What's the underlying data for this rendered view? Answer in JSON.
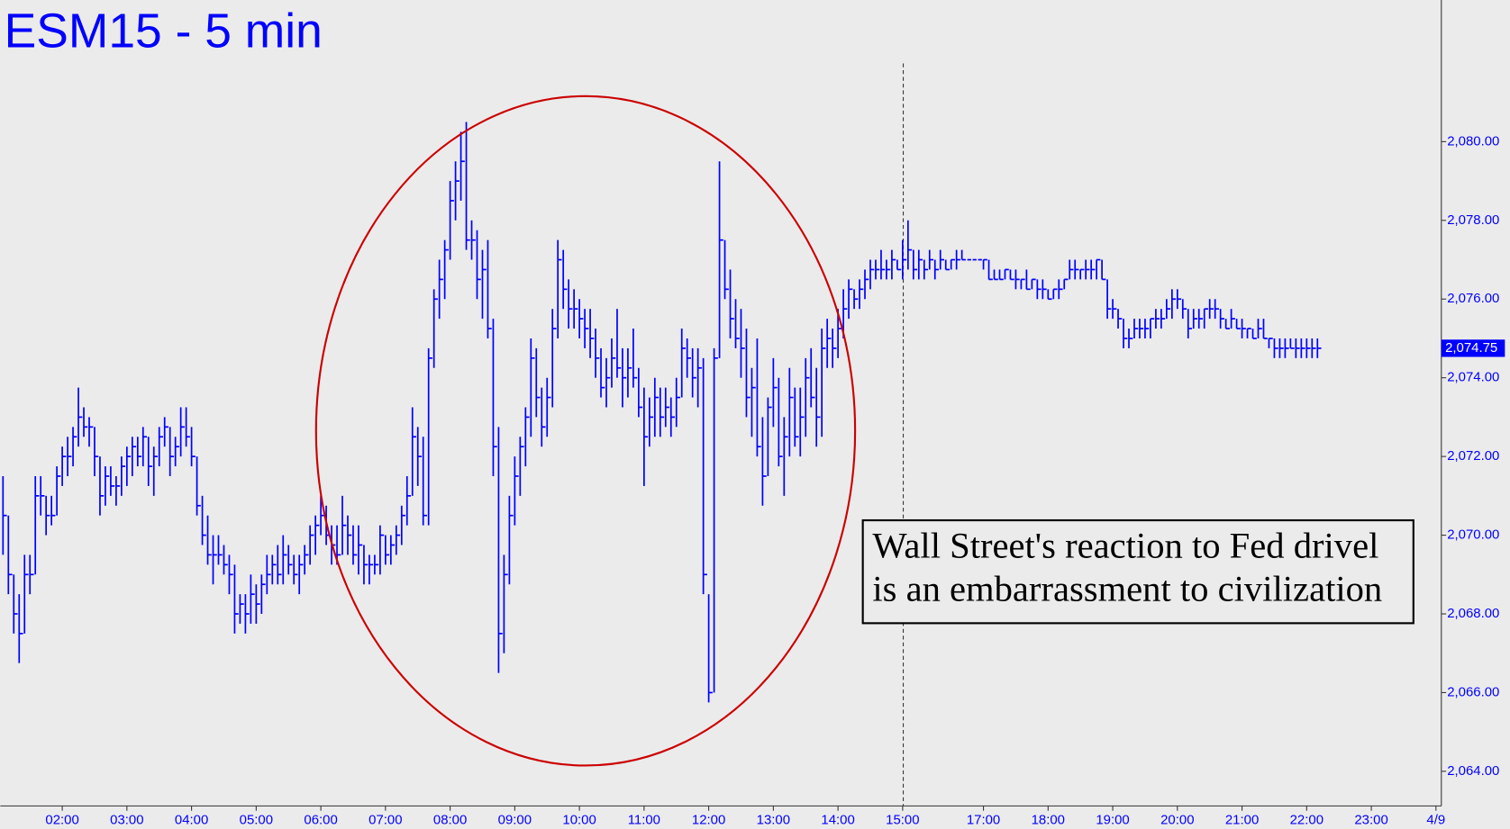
{
  "chart_data": {
    "type": "ohlc",
    "title": "ESM15 - 5 min",
    "color": "#0000ff",
    "annotation": [
      "Wall Street's reaction to Fed drivel",
      "is an embarrassment to civilization"
    ],
    "last_price": {
      "value": 2074.75,
      "label": "2,074.75"
    },
    "xlim": [
      -0.5,
      267
    ],
    "xticks": [
      {
        "value": 11,
        "label": "02:00"
      },
      {
        "value": 23,
        "label": "03:00"
      },
      {
        "value": 35,
        "label": "04:00"
      },
      {
        "value": 47,
        "label": "05:00"
      },
      {
        "value": 59,
        "label": "06:00"
      },
      {
        "value": 71,
        "label": "07:00"
      },
      {
        "value": 83,
        "label": "08:00"
      },
      {
        "value": 95,
        "label": "09:00"
      },
      {
        "value": 107,
        "label": "10:00"
      },
      {
        "value": 119,
        "label": "11:00"
      },
      {
        "value": 131,
        "label": "12:00"
      },
      {
        "value": 143,
        "label": "13:00"
      },
      {
        "value": 155,
        "label": "14:00"
      },
      {
        "value": 167,
        "label": "15:00"
      },
      {
        "value": 182,
        "label": "17:00"
      },
      {
        "value": 194,
        "label": "18:00"
      },
      {
        "value": 206,
        "label": "19:00"
      },
      {
        "value": 218,
        "label": "20:00"
      },
      {
        "value": 230,
        "label": "21:00"
      },
      {
        "value": 242,
        "label": "22:00"
      },
      {
        "value": 254,
        "label": "23:00"
      },
      {
        "value": 266,
        "label": "4/9"
      }
    ],
    "ylim": [
      2063.12,
      2083.6
    ],
    "yticks": [
      {
        "value": 2064,
        "label": "2,064.00"
      },
      {
        "value": 2066,
        "label": "2,066.00"
      },
      {
        "value": 2068,
        "label": "2,068.00"
      },
      {
        "value": 2070,
        "label": "2,070.00"
      },
      {
        "value": 2072,
        "label": "2,072.00"
      },
      {
        "value": 2074,
        "label": "2,074.00"
      },
      {
        "value": 2076,
        "label": "2,076.00"
      },
      {
        "value": 2078,
        "label": "2,078.00"
      },
      {
        "value": 2080,
        "label": "2,080.00"
      }
    ],
    "bars": [
      [
        2071.5,
        2069.5,
        2070.5
      ],
      [
        2070.5,
        2068.5,
        2069
      ],
      [
        2069,
        2067.5,
        2068
      ],
      [
        2068.5,
        2066.75,
        2067.5
      ],
      [
        2069.5,
        2067.5,
        2069
      ],
      [
        2069.5,
        2068.5,
        2069
      ],
      [
        2071.5,
        2069,
        2071
      ],
      [
        2071.5,
        2070.5,
        2071
      ],
      [
        2071,
        2070,
        2070.5
      ],
      [
        2071,
        2070.25,
        2070.5
      ],
      [
        2071.75,
        2070.5,
        2071.5
      ],
      [
        2072.25,
        2071.25,
        2072
      ],
      [
        2072.5,
        2071.5,
        2072
      ],
      [
        2072.75,
        2071.75,
        2072.5
      ],
      [
        2073.75,
        2072.25,
        2073
      ],
      [
        2073.25,
        2072.5,
        2072.75
      ],
      [
        2073,
        2072.25,
        2072.75
      ],
      [
        2072.75,
        2071.5,
        2072
      ],
      [
        2072,
        2070.5,
        2071
      ],
      [
        2071.75,
        2070.75,
        2071.5
      ],
      [
        2071.75,
        2071,
        2071.25
      ],
      [
        2071.5,
        2070.75,
        2071.25
      ],
      [
        2072,
        2071,
        2071.75
      ],
      [
        2072.25,
        2071.25,
        2072
      ],
      [
        2072.5,
        2071.5,
        2072.25
      ],
      [
        2072.5,
        2071.75,
        2072
      ],
      [
        2072.75,
        2071.75,
        2072.5
      ],
      [
        2072.5,
        2071.25,
        2071.75
      ],
      [
        2072.25,
        2071,
        2072
      ],
      [
        2072.75,
        2071.75,
        2072.5
      ],
      [
        2073,
        2072.25,
        2072.75
      ],
      [
        2072.75,
        2071.5,
        2072
      ],
      [
        2072.5,
        2071.75,
        2072.25
      ],
      [
        2073.25,
        2072,
        2072.75
      ],
      [
        2073.25,
        2072.25,
        2072.5
      ],
      [
        2072.75,
        2071.75,
        2072
      ],
      [
        2072,
        2070.5,
        2070.75
      ],
      [
        2071,
        2069.75,
        2070
      ],
      [
        2070.5,
        2069.25,
        2069.5
      ],
      [
        2070,
        2068.75,
        2069.5
      ],
      [
        2070,
        2069.25,
        2069.5
      ],
      [
        2069.75,
        2069,
        2069.25
      ],
      [
        2069.5,
        2068.5,
        2069
      ],
      [
        2069.25,
        2067.5,
        2068
      ],
      [
        2068.5,
        2067.75,
        2068.25
      ],
      [
        2068.5,
        2067.5,
        2068
      ],
      [
        2069,
        2067.75,
        2068.5
      ],
      [
        2068.75,
        2067.75,
        2068.25
      ],
      [
        2069,
        2068,
        2068.75
      ],
      [
        2069.5,
        2068.5,
        2069
      ],
      [
        2069.5,
        2068.75,
        2069.25
      ],
      [
        2069.75,
        2068.75,
        2069
      ],
      [
        2070,
        2068.75,
        2069.5
      ],
      [
        2069.75,
        2069,
        2069.25
      ],
      [
        2069.5,
        2068.75,
        2069
      ],
      [
        2069.5,
        2068.5,
        2069.25
      ],
      [
        2069.75,
        2069,
        2069.5
      ],
      [
        2070.25,
        2069.25,
        2070
      ],
      [
        2070.5,
        2069.5,
        2070.25
      ],
      [
        2071,
        2070,
        2070.5
      ],
      [
        2070.75,
        2069.75,
        2070
      ],
      [
        2070.25,
        2069.25,
        2069.75
      ],
      [
        2070.25,
        2069.25,
        2069.5
      ],
      [
        2071,
        2069.5,
        2070.25
      ],
      [
        2070.5,
        2069.5,
        2070
      ],
      [
        2070.25,
        2069.25,
        2069.5
      ],
      [
        2070.25,
        2069,
        2069.75
      ],
      [
        2069.75,
        2068.75,
        2069.25
      ],
      [
        2069.5,
        2068.75,
        2069.25
      ],
      [
        2069.5,
        2069,
        2069.25
      ],
      [
        2070.25,
        2069,
        2070
      ],
      [
        2070,
        2069.25,
        2069.5
      ],
      [
        2070,
        2069.25,
        2069.75
      ],
      [
        2070.25,
        2069.5,
        2070
      ],
      [
        2070.75,
        2069.75,
        2070.5
      ],
      [
        2071.5,
        2070.25,
        2071
      ],
      [
        2073.25,
        2071,
        2072.5
      ],
      [
        2072.75,
        2071.25,
        2072
      ],
      [
        2072.5,
        2070.25,
        2070.5
      ],
      [
        2074.75,
        2070.25,
        2074.5
      ],
      [
        2076.25,
        2074.25,
        2076
      ],
      [
        2077,
        2075.5,
        2076.5
      ],
      [
        2077.5,
        2076,
        2077.25
      ],
      [
        2079,
        2077,
        2078.5
      ],
      [
        2079.5,
        2078,
        2079
      ],
      [
        2080.25,
        2078.5,
        2079.5
      ],
      [
        2080.5,
        2077.25,
        2077.5
      ],
      [
        2078,
        2077,
        2077.5
      ],
      [
        2077.75,
        2076,
        2076.5
      ],
      [
        2077.25,
        2075.5,
        2076.75
      ],
      [
        2077.5,
        2075,
        2075.25
      ],
      [
        2075.5,
        2071.5,
        2072.25
      ],
      [
        2072.75,
        2066.5,
        2067.5
      ],
      [
        2069.5,
        2067,
        2069
      ],
      [
        2071,
        2068.75,
        2070.5
      ],
      [
        2072,
        2070.25,
        2071.5
      ],
      [
        2072.5,
        2071,
        2072.25
      ],
      [
        2073.25,
        2071.75,
        2073
      ],
      [
        2075,
        2072.5,
        2074.5
      ],
      [
        2074.75,
        2073,
        2073.5
      ],
      [
        2073.75,
        2072.25,
        2072.75
      ],
      [
        2074,
        2072.5,
        2073.5
      ],
      [
        2075.75,
        2073.25,
        2075.25
      ],
      [
        2077.5,
        2075,
        2077
      ],
      [
        2077.25,
        2075.75,
        2076.25
      ],
      [
        2076.5,
        2075.25,
        2075.75
      ],
      [
        2076.25,
        2075.25,
        2075.75
      ],
      [
        2076,
        2075,
        2075.5
      ],
      [
        2075.75,
        2074.75,
        2075.25
      ],
      [
        2075.75,
        2074.5,
        2075
      ],
      [
        2075.25,
        2074,
        2074.5
      ],
      [
        2074.75,
        2073.5,
        2073.75
      ],
      [
        2074.5,
        2073.25,
        2074
      ],
      [
        2075,
        2073.75,
        2074.5
      ],
      [
        2075.75,
        2074,
        2074.25
      ],
      [
        2074.75,
        2073.25,
        2074
      ],
      [
        2074.75,
        2073.5,
        2074.25
      ],
      [
        2075.25,
        2073.75,
        2074
      ],
      [
        2074.25,
        2073,
        2073.25
      ],
      [
        2073.75,
        2071.25,
        2072.5
      ],
      [
        2073.5,
        2072.25,
        2073
      ],
      [
        2074,
        2072.5,
        2073.5
      ],
      [
        2073.75,
        2072.5,
        2073
      ],
      [
        2073.75,
        2072.75,
        2073.25
      ],
      [
        2073.5,
        2072.5,
        2073
      ],
      [
        2074,
        2072.75,
        2073.5
      ],
      [
        2075.25,
        2073.5,
        2074.75
      ],
      [
        2075,
        2074,
        2074.5
      ],
      [
        2074.75,
        2073.5,
        2074
      ],
      [
        2074.75,
        2073.25,
        2074.25
      ],
      [
        2074.5,
        2068.5,
        2069
      ],
      [
        2068.5,
        2065.75,
        2066
      ],
      [
        2074.75,
        2066,
        2074.5
      ],
      [
        2079.5,
        2074.5,
        2077.5
      ],
      [
        2077.5,
        2076,
        2076.25
      ],
      [
        2076.75,
        2075,
        2075.5
      ],
      [
        2076,
        2074.75,
        2075
      ],
      [
        2075.75,
        2074,
        2074.75
      ],
      [
        2075.25,
        2073,
        2073.5
      ],
      [
        2074.25,
        2072.5,
        2073.75
      ],
      [
        2075,
        2072,
        2072.25
      ],
      [
        2073,
        2070.75,
        2071.5
      ],
      [
        2073.5,
        2071.5,
        2073.25
      ],
      [
        2074.5,
        2072.75,
        2073.75
      ],
      [
        2074,
        2071.75,
        2072
      ],
      [
        2073,
        2071,
        2072.5
      ],
      [
        2074.25,
        2072,
        2073.5
      ],
      [
        2073.75,
        2072.25,
        2072.5
      ],
      [
        2073.75,
        2072,
        2073
      ],
      [
        2074.5,
        2072.5,
        2074
      ],
      [
        2074.75,
        2073.25,
        2073.5
      ],
      [
        2074.25,
        2072.25,
        2073
      ],
      [
        2075.25,
        2072.5,
        2074.75
      ],
      [
        2075.5,
        2074.25,
        2075
      ],
      [
        2075.25,
        2074.25,
        2074.75
      ],
      [
        2075.75,
        2074.5,
        2075.25
      ],
      [
        2076.25,
        2075,
        2075.75
      ],
      [
        2076.5,
        2075.5,
        2076.25
      ],
      [
        2076.25,
        2075.75,
        2076
      ],
      [
        2076.5,
        2075.75,
        2076.25
      ],
      [
        2076.75,
        2076,
        2076.5
      ],
      [
        2077,
        2076.25,
        2076.75
      ],
      [
        2077,
        2076.5,
        2076.75
      ],
      [
        2077.25,
        2076.5,
        2076.75
      ],
      [
        2077,
        2076.5,
        2076.75
      ],
      [
        2077.25,
        2076.5,
        2077
      ],
      [
        2077,
        2076.75,
        2076.75
      ],
      [
        2077.5,
        2076.5,
        2077
      ],
      [
        2078,
        2076.75,
        2077.25
      ],
      [
        2077.25,
        2076.5,
        2076.75
      ],
      [
        2077.25,
        2076.5,
        2077
      ],
      [
        2077,
        2076.5,
        2076.75
      ],
      [
        2077.25,
        2076.75,
        2077
      ],
      [
        2077,
        2076.5,
        2076.75
      ],
      [
        2077.25,
        2076.75,
        2077
      ],
      [
        2077,
        2076.75,
        2076.75
      ],
      [
        2077,
        2076.75,
        2077
      ],
      [
        2077.25,
        2076.75,
        2077
      ],
      [
        2077.25,
        2077,
        2077
      ],
      [
        2077,
        2077,
        2077
      ],
      [
        2077,
        2077,
        2077
      ],
      [
        2077,
        2077,
        2077
      ],
      [
        2077,
        2076.75,
        2077
      ],
      [
        2077,
        2076.5,
        2076.5
      ],
      [
        2076.75,
        2076.5,
        2076.5
      ],
      [
        2076.75,
        2076.5,
        2076.5
      ],
      [
        2076.75,
        2076.5,
        2076.75
      ],
      [
        2076.75,
        2076.5,
        2076.5
      ],
      [
        2076.75,
        2076.25,
        2076.5
      ],
      [
        2076.5,
        2076.25,
        2076.5
      ],
      [
        2076.75,
        2076.25,
        2076.25
      ],
      [
        2076.5,
        2076.25,
        2076.5
      ],
      [
        2076.5,
        2076,
        2076.25
      ],
      [
        2076.5,
        2076,
        2076.25
      ],
      [
        2076.25,
        2076,
        2076
      ],
      [
        2076.25,
        2076,
        2076.25
      ],
      [
        2076.5,
        2076,
        2076.25
      ],
      [
        2076.5,
        2076.25,
        2076.5
      ],
      [
        2077,
        2076.5,
        2076.75
      ],
      [
        2077,
        2076.5,
        2076.75
      ],
      [
        2076.75,
        2076.5,
        2076.75
      ],
      [
        2077,
        2076.5,
        2076.75
      ],
      [
        2077,
        2076.5,
        2076.75
      ],
      [
        2077,
        2076.5,
        2077
      ],
      [
        2077,
        2076.5,
        2076.5
      ],
      [
        2076.5,
        2075.5,
        2075.75
      ],
      [
        2076,
        2075.5,
        2075.75
      ],
      [
        2075.75,
        2075.25,
        2075.5
      ],
      [
        2075.5,
        2074.75,
        2075
      ],
      [
        2075.25,
        2074.75,
        2075
      ],
      [
        2075.5,
        2075,
        2075.25
      ],
      [
        2075.5,
        2075,
        2075.25
      ],
      [
        2075.5,
        2075,
        2075.25
      ],
      [
        2075.5,
        2075,
        2075.5
      ],
      [
        2075.75,
        2075.25,
        2075.5
      ],
      [
        2075.75,
        2075.25,
        2075.5
      ],
      [
        2076,
        2075.5,
        2075.75
      ],
      [
        2076.25,
        2075.5,
        2076
      ],
      [
        2076.25,
        2075.75,
        2076
      ],
      [
        2076,
        2075.5,
        2075.75
      ],
      [
        2075.75,
        2075,
        2075.25
      ],
      [
        2075.75,
        2075.25,
        2075.5
      ],
      [
        2075.75,
        2075.25,
        2075.5
      ],
      [
        2075.75,
        2075.25,
        2075.75
      ],
      [
        2076,
        2075.5,
        2075.75
      ],
      [
        2076,
        2075.5,
        2075.75
      ],
      [
        2075.75,
        2075.25,
        2075.5
      ],
      [
        2075.5,
        2075.25,
        2075.25
      ],
      [
        2075.75,
        2075.25,
        2075.5
      ],
      [
        2075.5,
        2075.25,
        2075.25
      ],
      [
        2075.5,
        2075,
        2075.25
      ],
      [
        2075.25,
        2075,
        2075.25
      ],
      [
        2075.25,
        2075,
        2075
      ],
      [
        2075.5,
        2075,
        2075.25
      ],
      [
        2075.5,
        2075,
        2075
      ],
      [
        2075,
        2074.75,
        2075
      ],
      [
        2075,
        2074.5,
        2074.75
      ],
      [
        2075,
        2074.5,
        2074.75
      ],
      [
        2075,
        2074.5,
        2074.75
      ],
      [
        2075,
        2074.75,
        2074.75
      ],
      [
        2075,
        2074.5,
        2074.75
      ],
      [
        2075,
        2074.5,
        2074.75
      ],
      [
        2075,
        2074.5,
        2074.75
      ],
      [
        2075,
        2074.5,
        2074.75
      ],
      [
        2075,
        2074.5,
        2074.75
      ]
    ]
  }
}
